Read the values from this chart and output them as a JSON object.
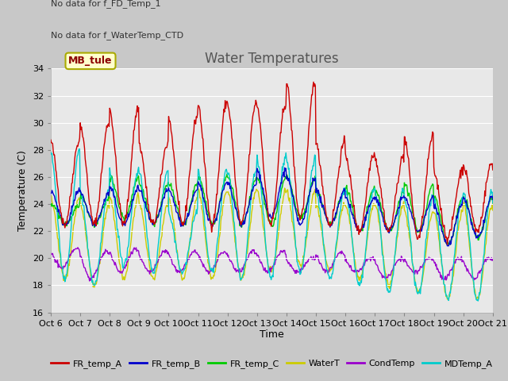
{
  "title": "Water Temperatures",
  "xlabel": "Time",
  "ylabel": "Temperature (C)",
  "ylim": [
    16,
    34
  ],
  "xlim": [
    0,
    15
  ],
  "x_tick_labels": [
    "Oct 6",
    "Oct 7",
    "Oct 8",
    "Oct 9",
    "Oct 10",
    "Oct 11",
    "Oct 12",
    "Oct 13",
    "Oct 14",
    "Oct 15",
    "Oct 16",
    "Oct 17",
    "Oct 18",
    "Oct 19",
    "Oct 20",
    "Oct 21"
  ],
  "no_data_texts": [
    "No data for f_FD_Temp_1",
    "No data for f_WaterTemp_CTD"
  ],
  "mb_tule_label": "MB_tule",
  "legend_entries": [
    "FR_temp_A",
    "FR_temp_B",
    "FR_temp_C",
    "WaterT",
    "CondTemp",
    "MDTemp_A"
  ],
  "legend_colors": [
    "#cc0000",
    "#0000cc",
    "#00cc00",
    "#cccc00",
    "#9900cc",
    "#00cccc"
  ],
  "title_color": "#555555",
  "title_fontsize": 12,
  "axis_label_fontsize": 9,
  "tick_fontsize": 8,
  "legend_fontsize": 8,
  "nodata_fontsize": 8,
  "bg_color": "#e8e8e8",
  "plot_bg": "#e8e8e8",
  "grid_color": "#ffffff",
  "fig_bg": "#c8c8c8"
}
